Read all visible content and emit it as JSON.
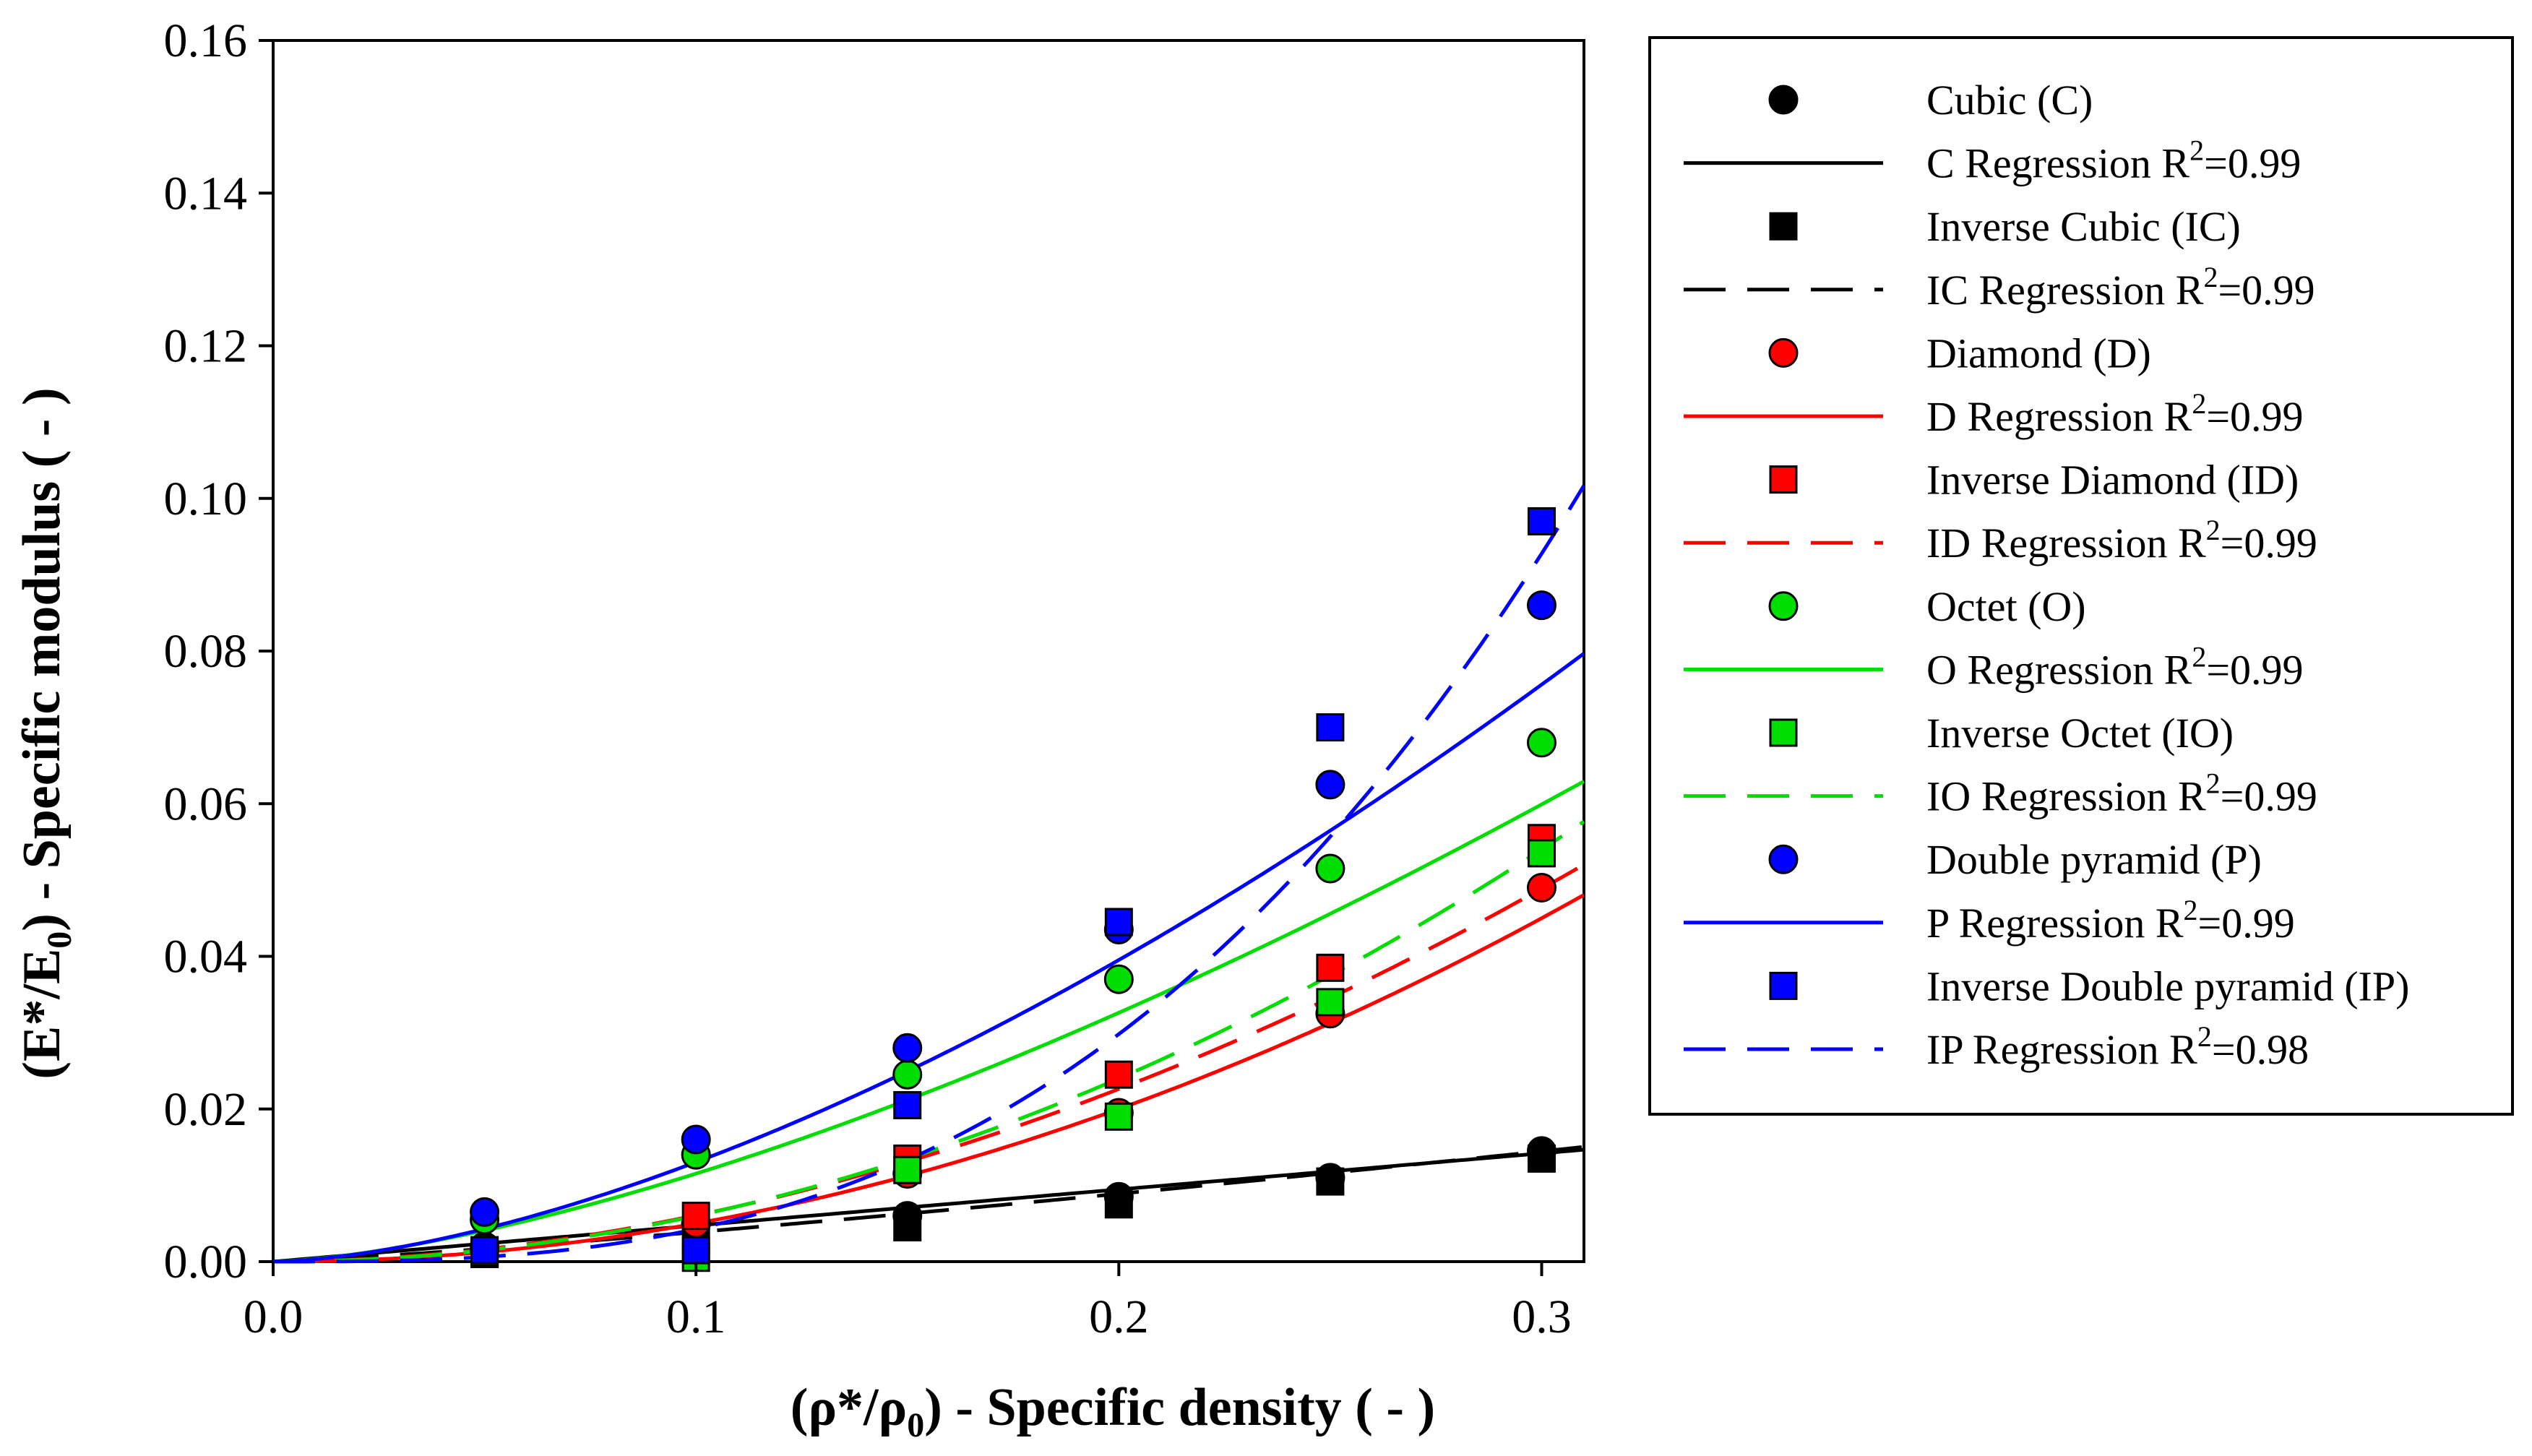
{
  "chart_data": {
    "type": "scatter",
    "xlabel": {
      "pre": "(ρ*/ρ",
      "sub": "0",
      "post": ") - Specific density ( - )"
    },
    "ylabel": {
      "pre": "(E*/E",
      "sub": "0",
      "post": ") - Specific modulus ( - )"
    },
    "xlim": [
      0,
      0.31
    ],
    "ylim": [
      0,
      0.16
    ],
    "xticks": [
      "0.0",
      "0.1",
      "0.2",
      "0.3"
    ],
    "yticks": [
      "0.00",
      "0.02",
      "0.04",
      "0.06",
      "0.08",
      "0.10",
      "0.12",
      "0.14",
      "0.16"
    ],
    "grid": false,
    "legend_position": "right",
    "series": [
      {
        "name": "Cubic (C)",
        "marker": "circle",
        "color": "#000000",
        "x": [
          0.05,
          0.1,
          0.15,
          0.2,
          0.25,
          0.3
        ],
        "y": [
          0.002,
          0.005,
          0.006,
          0.0085,
          0.011,
          0.0145
        ]
      },
      {
        "name": "Inverse Cubic (IC)",
        "marker": "square",
        "color": "#000000",
        "x": [
          0.05,
          0.1,
          0.15,
          0.2,
          0.25,
          0.3
        ],
        "y": [
          0.001,
          0.003,
          0.0045,
          0.0075,
          0.0105,
          0.0135
        ]
      },
      {
        "name": "Diamond (D)",
        "marker": "circle",
        "color": "#ff0000",
        "x": [
          0.05,
          0.1,
          0.15,
          0.2,
          0.25,
          0.3
        ],
        "y": [
          0.0015,
          0.005,
          0.0115,
          0.0195,
          0.0325,
          0.049
        ]
      },
      {
        "name": "Inverse Diamond (ID)",
        "marker": "square",
        "color": "#ff0000",
        "x": [
          0.05,
          0.1,
          0.15,
          0.2,
          0.25,
          0.3
        ],
        "y": [
          0.001,
          0.006,
          0.0135,
          0.0245,
          0.0385,
          0.0555
        ]
      },
      {
        "name": "Octet (O)",
        "marker": "circle",
        "color": "#00dd00",
        "x": [
          0.05,
          0.1,
          0.15,
          0.2,
          0.25,
          0.3
        ],
        "y": [
          0.0055,
          0.014,
          0.0245,
          0.037,
          0.0515,
          0.068
        ]
      },
      {
        "name": "Inverse Octet (IO)",
        "marker": "square",
        "color": "#00dd00",
        "x": [
          0.05,
          0.1,
          0.15,
          0.2,
          0.25,
          0.3
        ],
        "y": [
          0.0012,
          0.0005,
          0.012,
          0.019,
          0.034,
          0.0535
        ]
      },
      {
        "name": "Double pyramid (P)",
        "marker": "circle",
        "color": "#0000ff",
        "x": [
          0.05,
          0.1,
          0.15,
          0.2,
          0.25,
          0.3
        ],
        "y": [
          0.0065,
          0.016,
          0.028,
          0.0435,
          0.0625,
          0.086
        ]
      },
      {
        "name": "Inverse Double pyramid (IP)",
        "marker": "square",
        "color": "#0000ff",
        "x": [
          0.05,
          0.1,
          0.15,
          0.2,
          0.25,
          0.3
        ],
        "y": [
          0.0015,
          0.0015,
          0.0205,
          0.0445,
          0.07,
          0.097
        ]
      }
    ],
    "regressions": [
      {
        "name": "C Regression",
        "r2": "0.99",
        "color": "#000000",
        "dash": "solid",
        "a": 0.0473,
        "b": 1.0
      },
      {
        "name": "IC Regression",
        "r2": "0.99",
        "color": "#000000",
        "dash": "dashed",
        "a": 0.0613,
        "b": 1.2
      },
      {
        "name": "D Regression",
        "r2": "0.99",
        "color": "#ff0000",
        "dash": "solid",
        "a": 0.5,
        "b": 2.0
      },
      {
        "name": "ID Regression",
        "r2": "0.99",
        "color": "#ff0000",
        "dash": "dashed",
        "a": 0.4814,
        "b": 1.9
      },
      {
        "name": "O Regression",
        "r2": "0.99",
        "color": "#00dd00",
        "dash": "solid",
        "a": 0.3646,
        "b": 1.5
      },
      {
        "name": "IO Regression",
        "r2": "0.99",
        "color": "#00dd00",
        "dash": "dashed",
        "a": 0.6,
        "b": 2.0
      },
      {
        "name": "P Regression",
        "r2": "0.99",
        "color": "#0000ff",
        "dash": "solid",
        "a": 0.519,
        "b": 1.6
      },
      {
        "name": "IP Regression",
        "r2": "0.98",
        "color": "#0000ff",
        "dash": "dashed",
        "a": 2.7006,
        "b": 2.8
      }
    ]
  },
  "legend": {
    "entries": [
      {
        "kind": "marker",
        "marker": "circle",
        "color": "#000000",
        "label": "Cubic (C)"
      },
      {
        "kind": "line",
        "dash": "solid",
        "color": "#000000",
        "label": "C Regression R",
        "sup": "2",
        "tail": "=0.99"
      },
      {
        "kind": "marker",
        "marker": "square",
        "color": "#000000",
        "label": "Inverse Cubic (IC)"
      },
      {
        "kind": "line",
        "dash": "dashed",
        "color": "#000000",
        "label": "IC Regression R",
        "sup": "2",
        "tail": "=0.99"
      },
      {
        "kind": "marker",
        "marker": "circle",
        "color": "#ff0000",
        "label": "Diamond (D)"
      },
      {
        "kind": "line",
        "dash": "solid",
        "color": "#ff0000",
        "label": "D Regression R",
        "sup": "2",
        "tail": "=0.99"
      },
      {
        "kind": "marker",
        "marker": "square",
        "color": "#ff0000",
        "label": "Inverse Diamond (ID)"
      },
      {
        "kind": "line",
        "dash": "dashed",
        "color": "#ff0000",
        "label": "ID Regression R",
        "sup": "2",
        "tail": "=0.99"
      },
      {
        "kind": "marker",
        "marker": "circle",
        "color": "#00dd00",
        "label": "Octet (O)"
      },
      {
        "kind": "line",
        "dash": "solid",
        "color": "#00dd00",
        "label": "O Regression R",
        "sup": "2",
        "tail": "=0.99"
      },
      {
        "kind": "marker",
        "marker": "square",
        "color": "#00dd00",
        "label": "Inverse Octet (IO)"
      },
      {
        "kind": "line",
        "dash": "dashed",
        "color": "#00dd00",
        "label": "IO Regression R",
        "sup": "2",
        "tail": "=0.99"
      },
      {
        "kind": "marker",
        "marker": "circle",
        "color": "#0000ff",
        "label": "Double pyramid (P)"
      },
      {
        "kind": "line",
        "dash": "solid",
        "color": "#0000ff",
        "label": "P Regression R",
        "sup": "2",
        "tail": "=0.99"
      },
      {
        "kind": "marker",
        "marker": "square",
        "color": "#0000ff",
        "label": "Inverse Double pyramid (IP)"
      },
      {
        "kind": "line",
        "dash": "dashed",
        "color": "#0000ff",
        "label": "IP Regression R",
        "sup": "2",
        "tail": "=0.98"
      }
    ]
  }
}
